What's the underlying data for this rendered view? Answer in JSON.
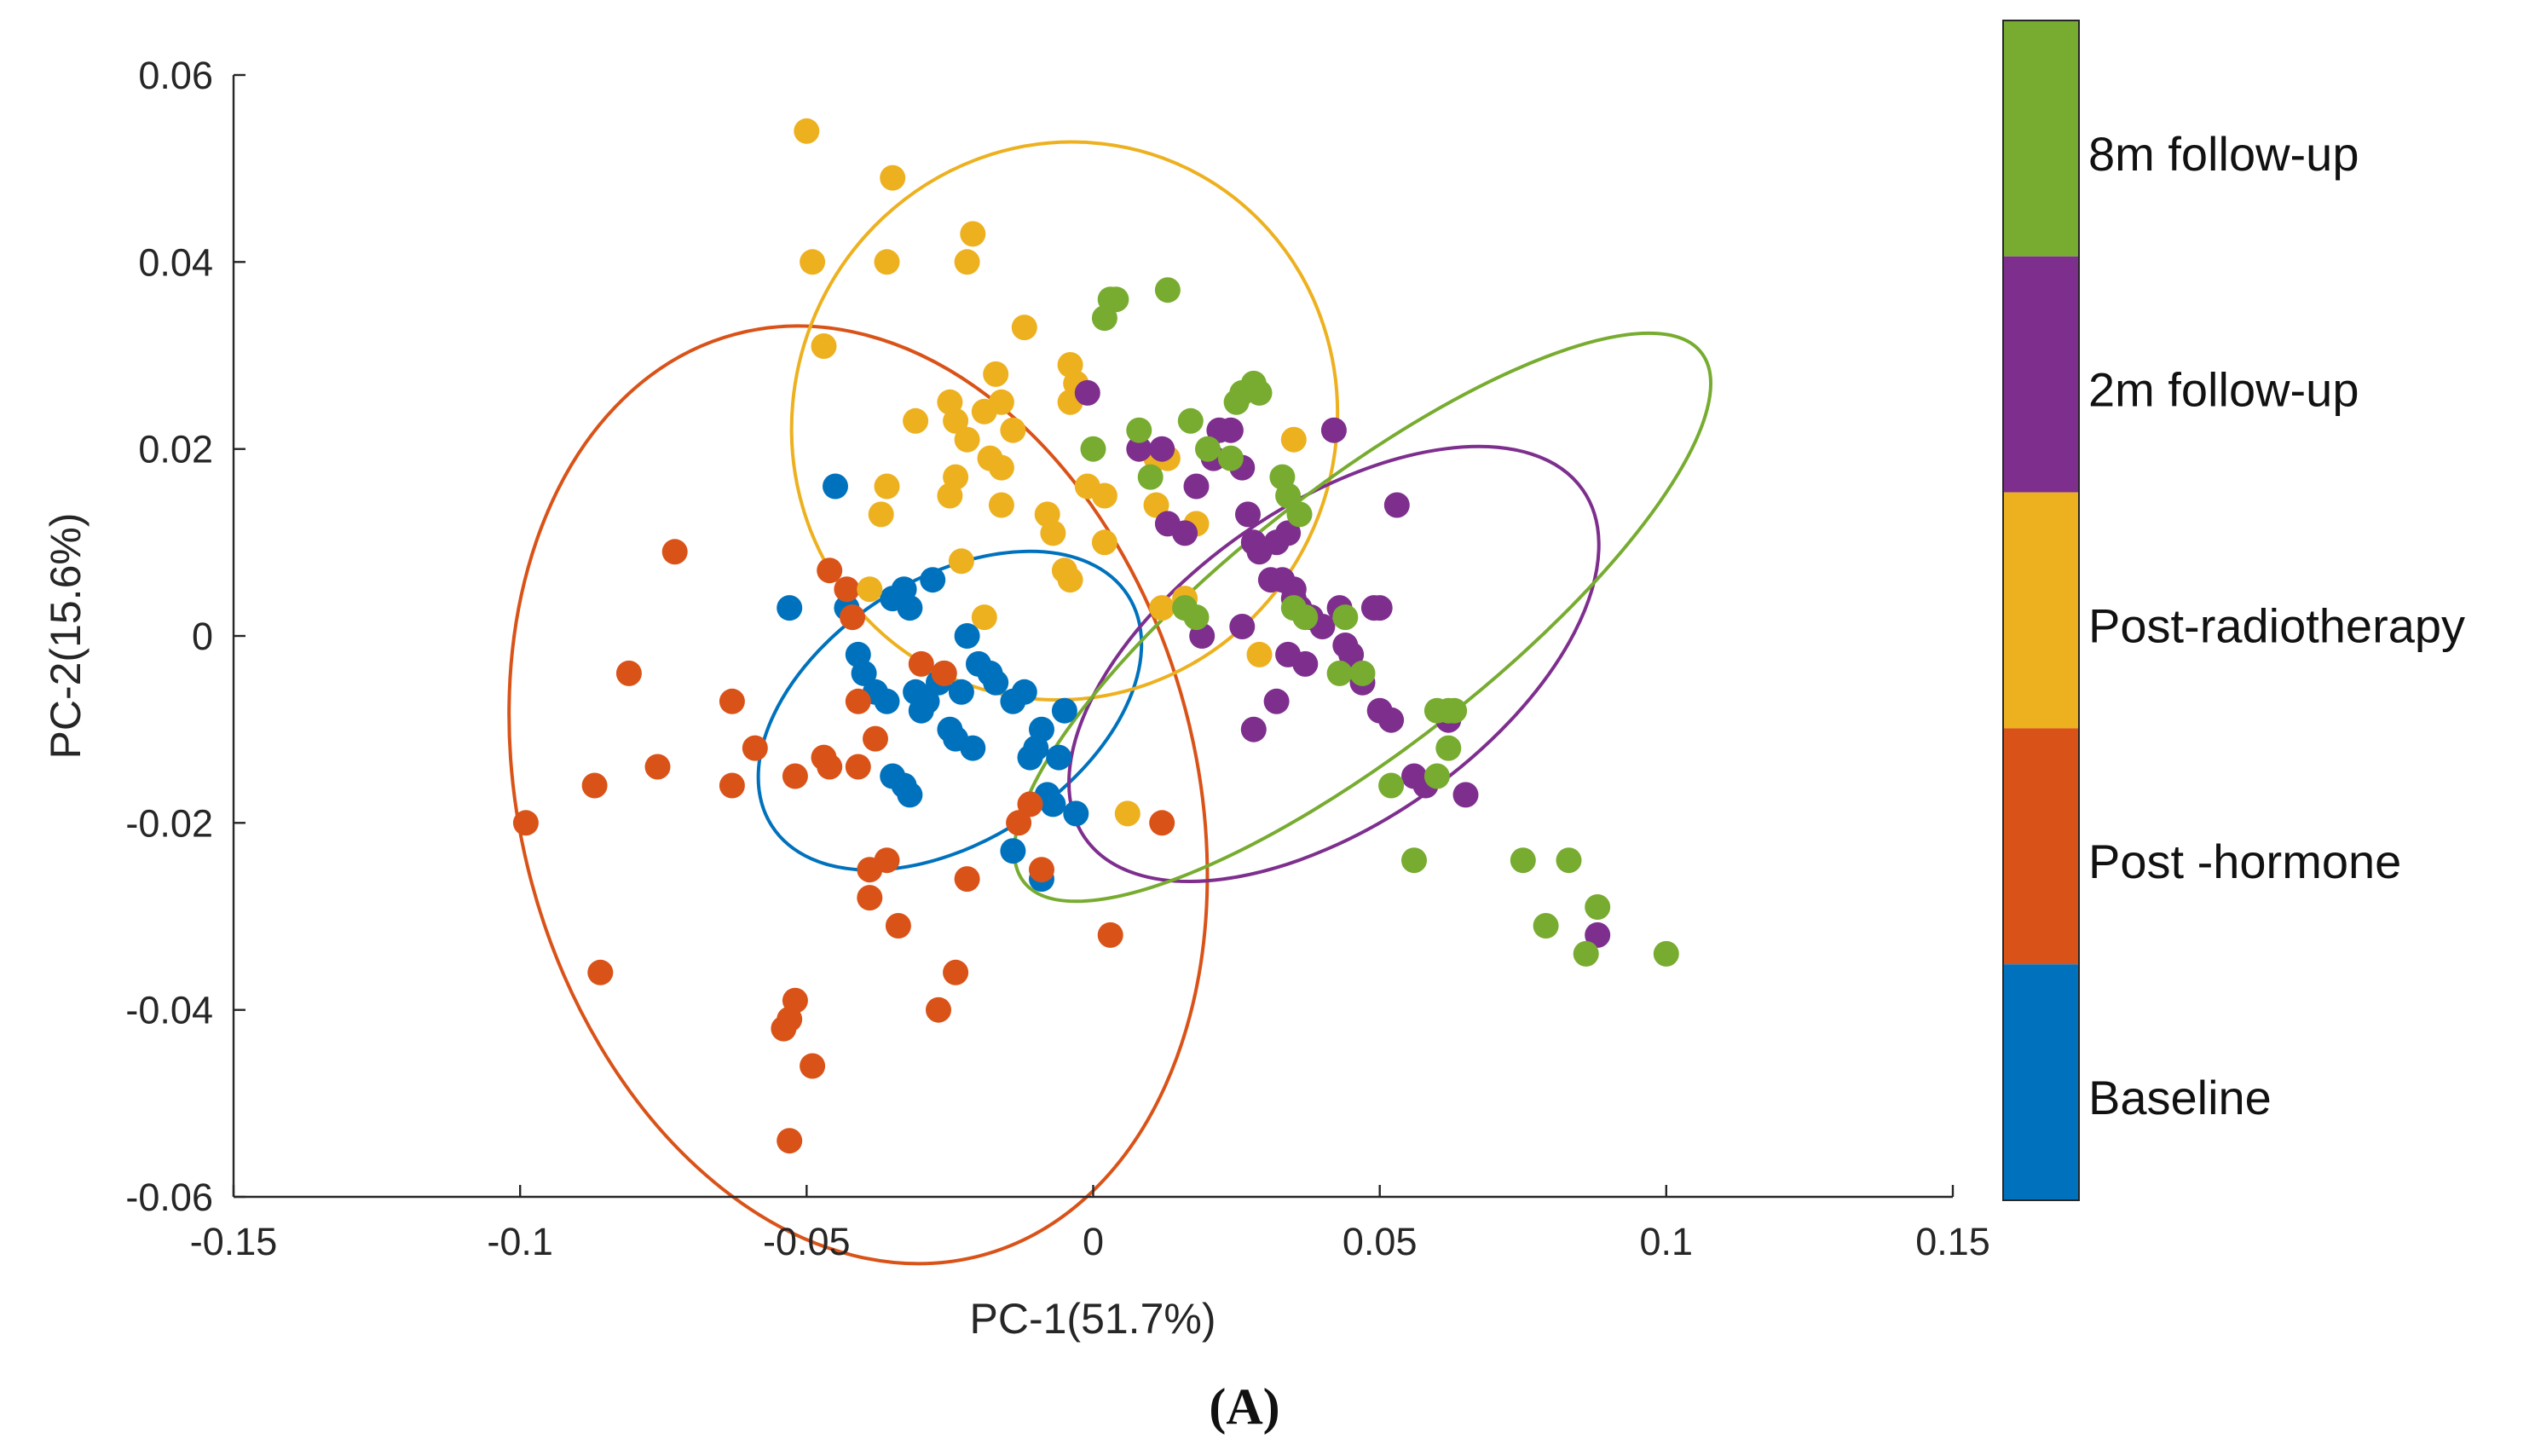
{
  "chart_data": {
    "type": "scatter",
    "title": "",
    "xlabel": "PC-1(51.7%)",
    "ylabel": "PC-2(15.6%)",
    "xlim": [
      -0.15,
      0.15
    ],
    "ylim": [
      -0.06,
      0.06
    ],
    "xticks": [
      -0.15,
      -0.1,
      -0.05,
      0,
      0.05,
      0.1,
      0.15
    ],
    "yticks": [
      -0.06,
      -0.04,
      -0.02,
      0,
      0.02,
      0.04,
      0.06
    ],
    "xtick_labels": [
      "-0.15",
      "-0.1",
      "-0.05",
      "0",
      "0.05",
      "0.1",
      "0.15"
    ],
    "ytick_labels": [
      "-0.06",
      "-0.04",
      "-0.02",
      "0",
      "0.02",
      "0.04",
      "0.06"
    ],
    "grid": false,
    "legend_placement": "right colorbar",
    "panel_label": "(A)",
    "legend": [
      {
        "name": "8m follow-up",
        "color": "#77AC30"
      },
      {
        "name": "2m follow-up",
        "color": "#7E2F8E"
      },
      {
        "name": "Post-radiotherapy",
        "color": "#EDB120"
      },
      {
        "name": "Post -hormone",
        "color": "#D95319"
      },
      {
        "name": "Baseline",
        "color": "#0072BD"
      }
    ],
    "series": [
      {
        "name": "Baseline",
        "color": "#0072BD",
        "ellipse": {
          "cx": -0.025,
          "cy": -0.008,
          "rx": 0.037,
          "ry": 0.014,
          "angle_deg": -33
        },
        "points": [
          [
            -0.053,
            0.003
          ],
          [
            -0.045,
            0.016
          ],
          [
            -0.043,
            0.003
          ],
          [
            -0.041,
            -0.002
          ],
          [
            -0.04,
            -0.004
          ],
          [
            -0.038,
            -0.006
          ],
          [
            -0.036,
            -0.007
          ],
          [
            -0.035,
            0.004
          ],
          [
            -0.033,
            0.005
          ],
          [
            -0.032,
            0.003
          ],
          [
            -0.031,
            -0.006
          ],
          [
            -0.03,
            -0.008
          ],
          [
            -0.029,
            -0.007
          ],
          [
            -0.028,
            0.006
          ],
          [
            -0.027,
            -0.005
          ],
          [
            -0.026,
            -0.004
          ],
          [
            -0.025,
            -0.01
          ],
          [
            -0.024,
            -0.011
          ],
          [
            -0.023,
            -0.006
          ],
          [
            -0.022,
            0.0
          ],
          [
            -0.021,
            -0.012
          ],
          [
            -0.02,
            -0.003
          ],
          [
            -0.018,
            -0.004
          ],
          [
            -0.017,
            -0.005
          ],
          [
            -0.014,
            -0.007
          ],
          [
            -0.012,
            -0.006
          ],
          [
            -0.011,
            -0.013
          ],
          [
            -0.01,
            -0.012
          ],
          [
            -0.009,
            -0.01
          ],
          [
            -0.008,
            -0.017
          ],
          [
            -0.007,
            -0.018
          ],
          [
            -0.006,
            -0.013
          ],
          [
            -0.005,
            -0.008
          ],
          [
            -0.014,
            -0.023
          ],
          [
            -0.009,
            -0.026
          ],
          [
            -0.033,
            -0.016
          ],
          [
            -0.032,
            -0.017
          ],
          [
            -0.035,
            -0.015
          ],
          [
            -0.003,
            -0.019
          ]
        ]
      },
      {
        "name": "Post -hormone",
        "color": "#D95319",
        "ellipse": {
          "cx": -0.041,
          "cy": -0.017,
          "rx": 0.059,
          "ry": 0.051,
          "angle_deg": -15
        },
        "points": [
          [
            -0.099,
            -0.02
          ],
          [
            -0.087,
            -0.016
          ],
          [
            -0.086,
            -0.036
          ],
          [
            -0.081,
            -0.004
          ],
          [
            -0.076,
            -0.014
          ],
          [
            -0.073,
            0.009
          ],
          [
            -0.063,
            -0.007
          ],
          [
            -0.063,
            -0.016
          ],
          [
            -0.059,
            -0.012
          ],
          [
            -0.054,
            -0.042
          ],
          [
            -0.053,
            -0.041
          ],
          [
            -0.053,
            -0.054
          ],
          [
            -0.052,
            -0.015
          ],
          [
            -0.052,
            -0.039
          ],
          [
            -0.049,
            -0.046
          ],
          [
            -0.047,
            -0.013
          ],
          [
            -0.046,
            -0.014
          ],
          [
            -0.046,
            0.007
          ],
          [
            -0.043,
            0.005
          ],
          [
            -0.042,
            0.002
          ],
          [
            -0.041,
            -0.007
          ],
          [
            -0.041,
            -0.014
          ],
          [
            -0.039,
            -0.025
          ],
          [
            -0.039,
            -0.028
          ],
          [
            -0.038,
            -0.011
          ],
          [
            -0.036,
            -0.024
          ],
          [
            -0.034,
            -0.031
          ],
          [
            -0.03,
            -0.003
          ],
          [
            -0.026,
            -0.004
          ],
          [
            -0.024,
            -0.036
          ],
          [
            -0.022,
            -0.026
          ],
          [
            -0.027,
            -0.04
          ],
          [
            -0.013,
            -0.02
          ],
          [
            -0.011,
            -0.018
          ],
          [
            -0.009,
            -0.025
          ],
          [
            0.003,
            -0.032
          ],
          [
            0.012,
            -0.02
          ]
        ]
      },
      {
        "name": "Post-radiotherapy",
        "color": "#EDB120",
        "ellipse": {
          "cx": -0.005,
          "cy": 0.023,
          "rx": 0.049,
          "ry": 0.029,
          "angle_deg": -64
        },
        "points": [
          [
            -0.05,
            0.054
          ],
          [
            -0.035,
            0.049
          ],
          [
            -0.049,
            0.04
          ],
          [
            -0.036,
            0.04
          ],
          [
            -0.047,
            0.031
          ],
          [
            -0.021,
            0.043
          ],
          [
            -0.022,
            0.04
          ],
          [
            -0.012,
            0.033
          ],
          [
            -0.025,
            0.025
          ],
          [
            -0.031,
            0.023
          ],
          [
            -0.024,
            0.023
          ],
          [
            -0.022,
            0.021
          ],
          [
            -0.019,
            0.024
          ],
          [
            -0.016,
            0.025
          ],
          [
            -0.017,
            0.028
          ],
          [
            -0.014,
            0.022
          ],
          [
            -0.024,
            0.017
          ],
          [
            -0.018,
            0.019
          ],
          [
            -0.016,
            0.018
          ],
          [
            -0.025,
            0.015
          ],
          [
            -0.036,
            0.016
          ],
          [
            -0.037,
            0.013
          ],
          [
            -0.016,
            0.014
          ],
          [
            -0.008,
            0.013
          ],
          [
            -0.007,
            0.011
          ],
          [
            -0.001,
            0.016
          ],
          [
            0.002,
            0.015
          ],
          [
            -0.004,
            0.025
          ],
          [
            -0.003,
            0.027
          ],
          [
            -0.004,
            0.029
          ],
          [
            -0.003,
            0.027
          ],
          [
            -0.005,
            0.007
          ],
          [
            -0.004,
            0.006
          ],
          [
            0.002,
            0.01
          ],
          [
            0.011,
            0.019
          ],
          [
            0.013,
            0.019
          ],
          [
            0.011,
            0.014
          ],
          [
            0.018,
            0.012
          ],
          [
            0.035,
            0.021
          ],
          [
            0.016,
            0.004
          ],
          [
            0.012,
            0.003
          ],
          [
            0.029,
            -0.002
          ],
          [
            -0.019,
            0.002
          ],
          [
            -0.023,
            0.008
          ],
          [
            -0.039,
            0.005
          ],
          [
            0.006,
            -0.019
          ]
        ]
      },
      {
        "name": "2m follow-up",
        "color": "#7E2F8E",
        "ellipse": {
          "cx": 0.042,
          "cy": -0.003,
          "rx": 0.053,
          "ry": 0.017,
          "angle_deg": -35
        },
        "points": [
          [
            -0.001,
            0.026
          ],
          [
            0.008,
            0.02
          ],
          [
            0.012,
            0.02
          ],
          [
            0.013,
            0.012
          ],
          [
            0.016,
            0.011
          ],
          [
            0.018,
            0.016
          ],
          [
            0.021,
            0.019
          ],
          [
            0.022,
            0.022
          ],
          [
            0.024,
            0.022
          ],
          [
            0.026,
            0.018
          ],
          [
            0.027,
            0.013
          ],
          [
            0.028,
            0.01
          ],
          [
            0.029,
            0.009
          ],
          [
            0.031,
            0.006
          ],
          [
            0.032,
            0.01
          ],
          [
            0.033,
            0.006
          ],
          [
            0.034,
            0.011
          ],
          [
            0.035,
            0.005
          ],
          [
            0.036,
            0.003
          ],
          [
            0.038,
            0.002
          ],
          [
            0.04,
            0.001
          ],
          [
            0.042,
            0.022
          ],
          [
            0.043,
            0.003
          ],
          [
            0.044,
            -0.001
          ],
          [
            0.045,
            -0.002
          ],
          [
            0.047,
            -0.005
          ],
          [
            0.049,
            0.003
          ],
          [
            0.05,
            0.003
          ],
          [
            0.05,
            -0.008
          ],
          [
            0.052,
            -0.009
          ],
          [
            0.053,
            0.014
          ],
          [
            0.056,
            -0.015
          ],
          [
            0.058,
            -0.016
          ],
          [
            0.062,
            -0.009
          ],
          [
            0.065,
            -0.017
          ],
          [
            0.088,
            -0.032
          ],
          [
            0.032,
            -0.007
          ],
          [
            0.028,
            -0.01
          ],
          [
            0.037,
            -0.003
          ],
          [
            0.034,
            -0.002
          ],
          [
            0.026,
            0.001
          ],
          [
            0.019,
            0.0
          ],
          [
            0.035,
            0.004
          ]
        ]
      },
      {
        "name": "8m follow-up",
        "color": "#77AC30",
        "ellipse": {
          "cx": 0.047,
          "cy": 0.002,
          "rx": 0.075,
          "ry": 0.014,
          "angle_deg": -38
        },
        "points": [
          [
            0.002,
            0.034
          ],
          [
            0.003,
            0.036
          ],
          [
            0.004,
            0.036
          ],
          [
            0.013,
            0.037
          ],
          [
            0.0,
            0.02
          ],
          [
            0.008,
            0.022
          ],
          [
            0.01,
            0.017
          ],
          [
            0.017,
            0.023
          ],
          [
            0.02,
            0.02
          ],
          [
            0.024,
            0.019
          ],
          [
            0.026,
            0.026
          ],
          [
            0.028,
            0.027
          ],
          [
            0.029,
            0.026
          ],
          [
            0.025,
            0.025
          ],
          [
            0.033,
            0.017
          ],
          [
            0.034,
            0.015
          ],
          [
            0.036,
            0.013
          ],
          [
            0.035,
            0.003
          ],
          [
            0.037,
            0.002
          ],
          [
            0.044,
            0.002
          ],
          [
            0.043,
            -0.004
          ],
          [
            0.047,
            -0.004
          ],
          [
            0.016,
            0.003
          ],
          [
            0.018,
            0.002
          ],
          [
            0.06,
            -0.008
          ],
          [
            0.062,
            -0.008
          ],
          [
            0.063,
            -0.008
          ],
          [
            0.062,
            -0.012
          ],
          [
            0.06,
            -0.015
          ],
          [
            0.052,
            -0.016
          ],
          [
            0.056,
            -0.024
          ],
          [
            0.075,
            -0.024
          ],
          [
            0.083,
            -0.024
          ],
          [
            0.079,
            -0.031
          ],
          [
            0.088,
            -0.029
          ],
          [
            0.086,
            -0.034
          ],
          [
            0.1,
            -0.034
          ]
        ]
      }
    ]
  }
}
